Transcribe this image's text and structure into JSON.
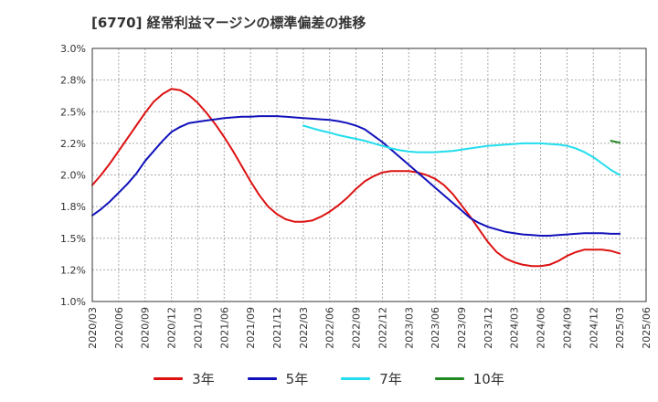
{
  "title": "[6770]  経常利益マージンの標準偏差の推移",
  "chart_data": {
    "type": "line",
    "title": "[6770]  経常利益マージンの標準偏差の推移",
    "xlabel": "",
    "ylabel": "",
    "ylim": [
      1.0,
      3.0
    ],
    "yticks": [
      "3.0%",
      "2.8%",
      "2.5%",
      "2.2%",
      "2.0%",
      "1.8%",
      "1.5%",
      "1.2%",
      "1.0%"
    ],
    "ytick_values": [
      3.0,
      2.75,
      2.5,
      2.25,
      2.0,
      1.75,
      1.5,
      1.25,
      1.0
    ],
    "xticks": [
      "2020/03",
      "2020/06",
      "2020/09",
      "2020/12",
      "2021/03",
      "2021/06",
      "2021/09",
      "2021/12",
      "2022/03",
      "2022/06",
      "2022/09",
      "2022/12",
      "2023/03",
      "2023/06",
      "2023/09",
      "2023/12",
      "2024/03",
      "2024/06",
      "2024/09",
      "2024/12",
      "2025/03",
      "2025/06"
    ],
    "grid": true,
    "legend_position": "bottom",
    "series": [
      {
        "name": "3年",
        "color": "#dd1111",
        "x": [
          "2020/03",
          "2020/04",
          "2020/05",
          "2020/06",
          "2020/07",
          "2020/08",
          "2020/09",
          "2020/10",
          "2020/11",
          "2020/12",
          "2021/01",
          "2021/02",
          "2021/03",
          "2021/04",
          "2021/05",
          "2021/06",
          "2021/07",
          "2021/08",
          "2021/09",
          "2021/10",
          "2021/11",
          "2021/12",
          "2022/01",
          "2022/02",
          "2022/03",
          "2022/04",
          "2022/05",
          "2022/06",
          "2022/07",
          "2022/08",
          "2022/09",
          "2022/10",
          "2022/11",
          "2022/12",
          "2023/01",
          "2023/02",
          "2023/03",
          "2023/04",
          "2023/05",
          "2023/06",
          "2023/07",
          "2023/08",
          "2023/09",
          "2023/10",
          "2023/11",
          "2023/12",
          "2024/01",
          "2024/02",
          "2024/03",
          "2024/04",
          "2024/05",
          "2024/06",
          "2024/07",
          "2024/08",
          "2024/09",
          "2024/10",
          "2024/11",
          "2024/12",
          "2025/01",
          "2025/02",
          "2025/03"
        ],
        "values": [
          1.92,
          2.0,
          2.09,
          2.19,
          2.29,
          2.39,
          2.49,
          2.58,
          2.64,
          2.68,
          2.67,
          2.63,
          2.57,
          2.49,
          2.4,
          2.3,
          2.19,
          2.07,
          1.95,
          1.84,
          1.75,
          1.69,
          1.65,
          1.63,
          1.63,
          1.64,
          1.67,
          1.71,
          1.76,
          1.82,
          1.89,
          1.95,
          1.99,
          2.02,
          2.03,
          2.03,
          2.03,
          2.02,
          2.0,
          1.97,
          1.92,
          1.85,
          1.76,
          1.67,
          1.57,
          1.47,
          1.39,
          1.34,
          1.31,
          1.29,
          1.28,
          1.28,
          1.29,
          1.32,
          1.36,
          1.39,
          1.41,
          1.41,
          1.41,
          1.4,
          1.38
        ]
      },
      {
        "name": "5年",
        "color": "#1111bb",
        "x": [
          "2020/03",
          "2020/04",
          "2020/05",
          "2020/06",
          "2020/07",
          "2020/08",
          "2020/09",
          "2020/10",
          "2020/11",
          "2020/12",
          "2021/01",
          "2021/02",
          "2021/03",
          "2021/04",
          "2021/05",
          "2021/06",
          "2021/07",
          "2021/08",
          "2021/09",
          "2021/10",
          "2021/11",
          "2021/12",
          "2022/01",
          "2022/02",
          "2022/03",
          "2022/04",
          "2022/05",
          "2022/06",
          "2022/07",
          "2022/08",
          "2022/09",
          "2022/10",
          "2022/11",
          "2022/12",
          "2023/01",
          "2023/02",
          "2023/03",
          "2023/04",
          "2023/05",
          "2023/06",
          "2023/07",
          "2023/08",
          "2023/09",
          "2023/10",
          "2023/11",
          "2023/12",
          "2024/01",
          "2024/02",
          "2024/03",
          "2024/04",
          "2024/05",
          "2024/06",
          "2024/07",
          "2024/08",
          "2024/09",
          "2024/10",
          "2024/11",
          "2024/12",
          "2025/01",
          "2025/02",
          "2025/03"
        ],
        "values": [
          1.68,
          1.73,
          1.79,
          1.86,
          1.93,
          2.01,
          2.11,
          2.19,
          2.27,
          2.34,
          2.38,
          2.41,
          2.42,
          2.43,
          2.44,
          2.45,
          2.455,
          2.46,
          2.46,
          2.465,
          2.465,
          2.465,
          2.46,
          2.455,
          2.45,
          2.445,
          2.44,
          2.435,
          2.425,
          2.41,
          2.39,
          2.36,
          2.31,
          2.26,
          2.2,
          2.14,
          2.08,
          2.02,
          1.96,
          1.9,
          1.84,
          1.78,
          1.72,
          1.66,
          1.62,
          1.59,
          1.57,
          1.55,
          1.54,
          1.53,
          1.525,
          1.52,
          1.52,
          1.525,
          1.53,
          1.535,
          1.54,
          1.54,
          1.54,
          1.535,
          1.535
        ]
      },
      {
        "name": "7年",
        "color": "#22ddee",
        "x": [
          "2022/03",
          "2022/04",
          "2022/05",
          "2022/06",
          "2022/07",
          "2022/08",
          "2022/09",
          "2022/10",
          "2022/11",
          "2022/12",
          "2023/01",
          "2023/02",
          "2023/03",
          "2023/04",
          "2023/05",
          "2023/06",
          "2023/07",
          "2023/08",
          "2023/09",
          "2023/10",
          "2023/11",
          "2023/12",
          "2024/01",
          "2024/02",
          "2024/03",
          "2024/04",
          "2024/05",
          "2024/06",
          "2024/07",
          "2024/08",
          "2024/09",
          "2024/10",
          "2024/11",
          "2024/12",
          "2025/01",
          "2025/02",
          "2025/03"
        ],
        "values": [
          2.39,
          2.37,
          2.35,
          2.335,
          2.315,
          2.3,
          2.285,
          2.27,
          2.25,
          2.23,
          2.21,
          2.195,
          2.185,
          2.18,
          2.18,
          2.18,
          2.185,
          2.19,
          2.2,
          2.21,
          2.22,
          2.23,
          2.235,
          2.24,
          2.245,
          2.25,
          2.25,
          2.25,
          2.245,
          2.24,
          2.23,
          2.21,
          2.18,
          2.14,
          2.09,
          2.04,
          2.0
        ]
      },
      {
        "name": "10年",
        "color": "#228822",
        "x": [
          "2025/02",
          "2025/03"
        ],
        "values": [
          2.27,
          2.255
        ]
      }
    ]
  }
}
